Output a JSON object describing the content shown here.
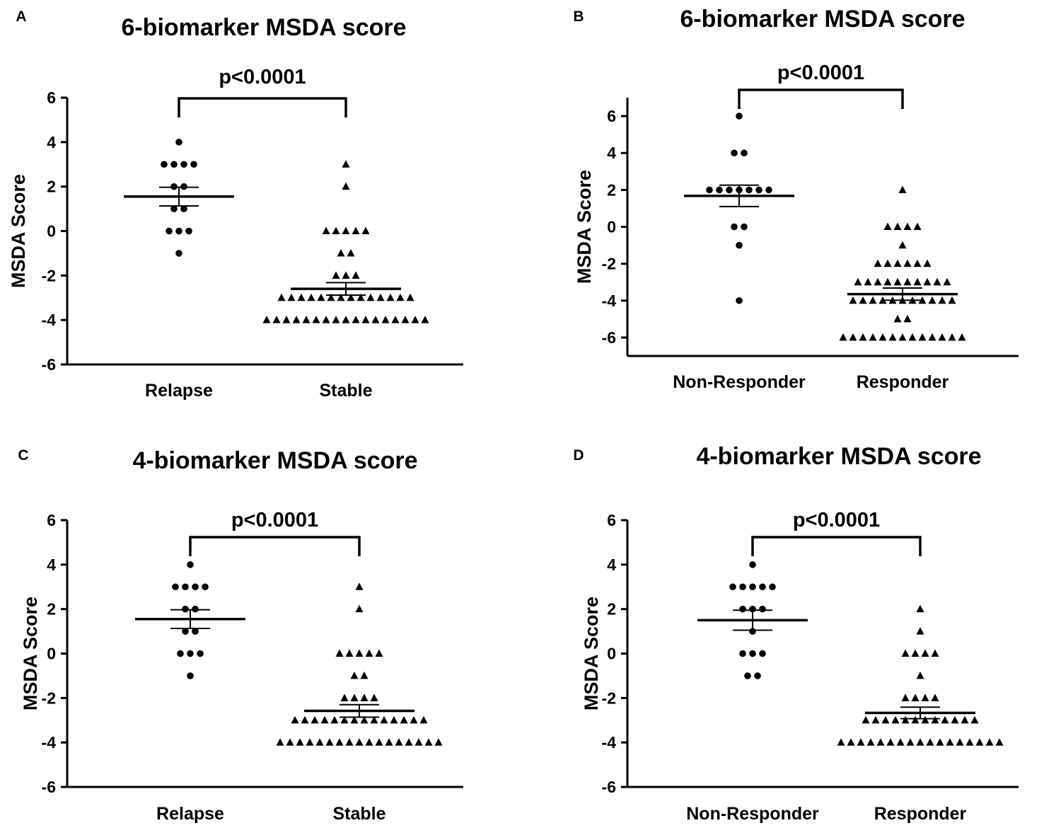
{
  "figure": {
    "panels_summary": "four dot plots",
    "colors": {
      "ink": "#000000",
      "background": "#ffffff"
    }
  },
  "chart_data": [
    {
      "panel": "A",
      "type": "scatter",
      "title": "6-biomarker MSDA score",
      "ylabel": "MSDA Score",
      "xlabel": "",
      "ylim": [
        -6,
        6
      ],
      "yticks": [
        "-6",
        "-4",
        "-2",
        "0",
        "2",
        "4",
        "6"
      ],
      "categories": [
        "Relapse",
        "Stable"
      ],
      "annotation": "p<0.0001",
      "grid": false,
      "series": [
        {
          "name": "Relapse",
          "marker": "circle",
          "mean": 1.55,
          "sem": 0.42,
          "values": [
            4,
            3,
            3,
            3,
            3,
            2,
            2,
            1,
            1,
            0,
            0,
            0,
            -1
          ]
        },
        {
          "name": "Stable",
          "marker": "triangle",
          "mean": -2.6,
          "sem": 0.28,
          "values": [
            3,
            2,
            0,
            0,
            0,
            0,
            0,
            -1,
            -1,
            -2,
            -2,
            -2,
            -3,
            -3,
            -3,
            -3,
            -3,
            -3,
            -3,
            -3,
            -3,
            -3,
            -3,
            -3,
            -3,
            -3,
            -4,
            -4,
            -4,
            -4,
            -4,
            -4,
            -4,
            -4,
            -4,
            -4,
            -4,
            -4,
            -4,
            -4,
            -4,
            -4,
            -4
          ]
        }
      ]
    },
    {
      "panel": "B",
      "type": "scatter",
      "title": "6-biomarker MSDA score",
      "ylabel": "MSDA Score",
      "xlabel": "",
      "ylim": [
        -7,
        7
      ],
      "yticks": [
        "-6",
        "-4",
        "-2",
        "0",
        "2",
        "4",
        "6"
      ],
      "categories": [
        "Non-Responder",
        "Responder"
      ],
      "annotation": "p<0.0001",
      "grid": false,
      "series": [
        {
          "name": "Non-Responder",
          "marker": "circle",
          "mean": 1.68,
          "sem": 0.58,
          "values": [
            6,
            4,
            4,
            2,
            2,
            2,
            2,
            2,
            2,
            2,
            0,
            0,
            -1,
            -4
          ]
        },
        {
          "name": "Responder",
          "marker": "triangle",
          "mean": -3.65,
          "sem": 0.33,
          "values": [
            2,
            0,
            0,
            0,
            0,
            -1,
            -2,
            -2,
            -2,
            -2,
            -2,
            -2,
            -3,
            -3,
            -3,
            -3,
            -3,
            -3,
            -3,
            -3,
            -3,
            -3,
            -4,
            -4,
            -4,
            -4,
            -4,
            -4,
            -4,
            -4,
            -4,
            -4,
            -4,
            -5,
            -5,
            -6,
            -6,
            -6,
            -6,
            -6,
            -6,
            -6,
            -6,
            -6,
            -6,
            -6,
            -6,
            -6
          ]
        }
      ]
    },
    {
      "panel": "C",
      "type": "scatter",
      "title": "4-biomarker MSDA score",
      "ylabel": "MSDA Score",
      "xlabel": "",
      "ylim": [
        -6,
        6
      ],
      "yticks": [
        "-6",
        "-4",
        "-2",
        "0",
        "2",
        "4",
        "6"
      ],
      "categories": [
        "Relapse",
        "Stable"
      ],
      "annotation": "p<0.0001",
      "grid": false,
      "series": [
        {
          "name": "Relapse",
          "marker": "circle",
          "mean": 1.55,
          "sem": 0.42,
          "values": [
            4,
            3,
            3,
            3,
            3,
            2,
            2,
            1,
            1,
            0,
            0,
            0,
            -1
          ]
        },
        {
          "name": "Stable",
          "marker": "triangle",
          "mean": -2.58,
          "sem": 0.28,
          "values": [
            3,
            2,
            0,
            0,
            0,
            0,
            0,
            -1,
            -1,
            -2,
            -2,
            -2,
            -2,
            -3,
            -3,
            -3,
            -3,
            -3,
            -3,
            -3,
            -3,
            -3,
            -3,
            -3,
            -3,
            -3,
            -3,
            -4,
            -4,
            -4,
            -4,
            -4,
            -4,
            -4,
            -4,
            -4,
            -4,
            -4,
            -4,
            -4,
            -4,
            -4,
            -4,
            -4
          ]
        }
      ]
    },
    {
      "panel": "D",
      "type": "scatter",
      "title": "4-biomarker MSDA score",
      "ylabel": "MSDA Score",
      "xlabel": "",
      "ylim": [
        -6,
        6
      ],
      "yticks": [
        "-6",
        "-4",
        "-2",
        "0",
        "2",
        "4",
        "6"
      ],
      "categories": [
        "Non-Responder",
        "Responder"
      ],
      "annotation": "p<0.0001",
      "grid": false,
      "series": [
        {
          "name": "Non-Responder",
          "marker": "circle",
          "mean": 1.5,
          "sem": 0.45,
          "values": [
            4,
            3,
            3,
            3,
            3,
            3,
            2,
            2,
            2,
            1,
            0,
            0,
            0,
            -1,
            -1
          ]
        },
        {
          "name": "Responder",
          "marker": "triangle",
          "mean": -2.67,
          "sem": 0.26,
          "values": [
            2,
            1,
            0,
            0,
            0,
            0,
            -1,
            -2,
            -2,
            -2,
            -2,
            -3,
            -3,
            -3,
            -3,
            -3,
            -3,
            -3,
            -3,
            -3,
            -3,
            -3,
            -3,
            -4,
            -4,
            -4,
            -4,
            -4,
            -4,
            -4,
            -4,
            -4,
            -4,
            -4,
            -4,
            -4,
            -4,
            -4,
            -4,
            -4
          ]
        }
      ]
    }
  ]
}
